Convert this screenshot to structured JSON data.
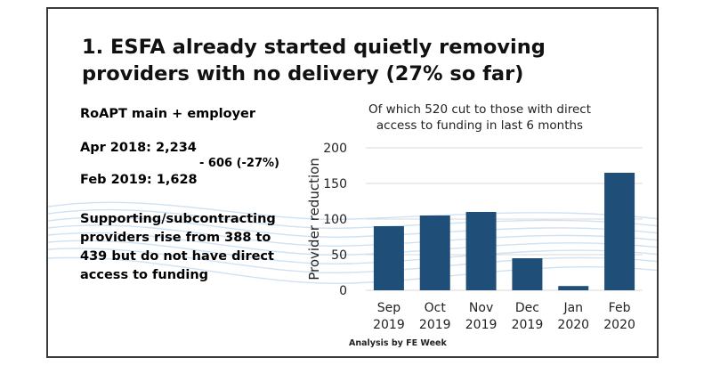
{
  "slide": {
    "title": "1. ESFA already started quietly removing providers with no delivery (27% so far)",
    "roapt_heading": "RoAPT main + employer",
    "apr_line": "Apr 2018: 2,234",
    "change_line": "- 606 (-27%)",
    "feb_line": "Feb 2019: 1,628",
    "supporting_text": "Supporting/subcontracting providers rise from 388 to 439 but do not have direct access to funding",
    "footer": "Analysis by FE Week"
  },
  "colors": {
    "bar": "#1f4e79",
    "grid": "#d9d9d9",
    "waves": "#cfe2f3"
  },
  "chart_data": {
    "type": "bar",
    "title": "Of which 520 cut to those with direct access to funding in last 6 months",
    "categories": [
      [
        "Sep",
        "2019"
      ],
      [
        "Oct",
        "2019"
      ],
      [
        "Nov",
        "2019"
      ],
      [
        "Dec",
        "2019"
      ],
      [
        "Jan",
        "2020"
      ],
      [
        "Feb",
        "2020"
      ]
    ],
    "values": [
      90,
      105,
      110,
      45,
      6,
      165
    ],
    "ylabel": "Provider reduction",
    "xlabel": "",
    "ylim": [
      0,
      200
    ],
    "yticks": [
      0,
      50,
      100,
      150,
      200
    ],
    "grid": true,
    "legend": "none"
  }
}
